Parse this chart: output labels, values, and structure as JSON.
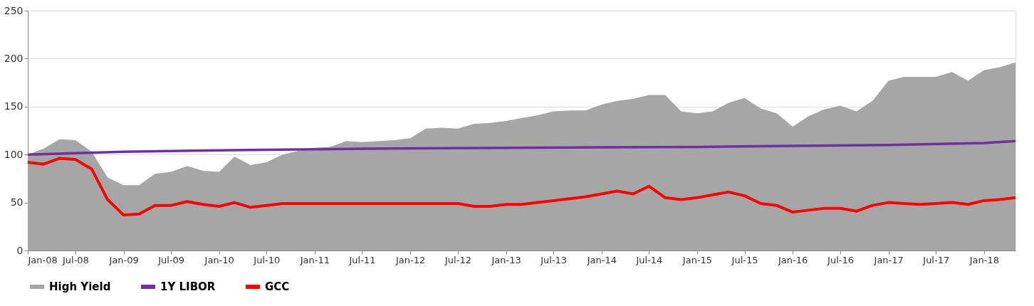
{
  "chart_data": {
    "type": "area",
    "x": [
      "2008-01",
      "2008-03",
      "2008-05",
      "2008-07",
      "2008-09",
      "2008-11",
      "2009-01",
      "2009-03",
      "2009-05",
      "2009-07",
      "2009-09",
      "2009-11",
      "2010-01",
      "2010-03",
      "2010-05",
      "2010-07",
      "2010-09",
      "2010-11",
      "2011-01",
      "2011-03",
      "2011-05",
      "2011-07",
      "2011-09",
      "2011-11",
      "2012-01",
      "2012-03",
      "2012-05",
      "2012-07",
      "2012-09",
      "2012-11",
      "2013-01",
      "2013-03",
      "2013-05",
      "2013-07",
      "2013-09",
      "2013-11",
      "2014-01",
      "2014-03",
      "2014-05",
      "2014-07",
      "2014-09",
      "2014-11",
      "2015-01",
      "2015-03",
      "2015-05",
      "2015-07",
      "2015-09",
      "2015-11",
      "2016-01",
      "2016-03",
      "2016-05",
      "2016-07",
      "2016-09",
      "2016-11",
      "2017-01",
      "2017-03",
      "2017-05",
      "2017-07",
      "2017-09",
      "2017-11",
      "2018-01",
      "2018-03",
      "2018-05"
    ],
    "series": [
      {
        "name": "High Yield",
        "color": "#a6a6a6",
        "values": [
          100,
          106,
          116,
          115,
          103,
          76,
          68,
          68,
          80,
          82,
          88,
          83,
          82,
          98,
          89,
          92,
          100,
          104,
          107,
          108,
          114,
          113,
          114,
          115,
          117,
          127,
          128,
          127,
          132,
          133,
          135,
          138,
          141,
          145,
          146,
          146,
          152,
          156,
          158,
          162,
          162,
          145,
          143,
          145,
          154,
          159,
          148,
          143,
          129,
          140,
          147,
          151,
          145,
          156,
          177,
          181,
          181,
          181,
          186,
          177,
          188,
          191,
          196
        ]
      },
      {
        "name": "1Y LIBOR",
        "type": "line",
        "color": "#7030a0",
        "x": [
          "2008-01",
          "2009-01",
          "2010-01",
          "2011-01",
          "2012-01",
          "2013-01",
          "2014-01",
          "2015-01",
          "2016-01",
          "2017-01",
          "2018-01",
          "2018-05"
        ],
        "values": [
          100,
          103,
          104.5,
          105.5,
          106.5,
          107,
          107.5,
          108,
          109,
          110,
          112,
          114
        ]
      },
      {
        "name": "GCC",
        "type": "line",
        "color": "#ff0000",
        "values": [
          92,
          90,
          96,
          95,
          85,
          53,
          37,
          38,
          47,
          47,
          51,
          48,
          46,
          50,
          45,
          47,
          49,
          49,
          49,
          49,
          49,
          49,
          49,
          49,
          49,
          49,
          49,
          49,
          46,
          46,
          48,
          48,
          50,
          52,
          54,
          56,
          59,
          62,
          59,
          67,
          55,
          53,
          55,
          58,
          61,
          57,
          49,
          47,
          40,
          42,
          44,
          44,
          41,
          47,
          50,
          49,
          48,
          49,
          50,
          48,
          52,
          53,
          55
        ]
      }
    ],
    "xlim": [
      "2008-01",
      "2018-05"
    ],
    "xticks": [
      {
        "value": "2008-01",
        "label": "Jan-08"
      },
      {
        "value": "2008-07",
        "label": "Jul-08"
      },
      {
        "value": "2009-01",
        "label": "Jan-09"
      },
      {
        "value": "2009-07",
        "label": "Jul-09"
      },
      {
        "value": "2010-01",
        "label": "Jan-10"
      },
      {
        "value": "2010-07",
        "label": "Jul-10"
      },
      {
        "value": "2011-01",
        "label": "Jan-11"
      },
      {
        "value": "2011-07",
        "label": "Jul-11"
      },
      {
        "value": "2012-01",
        "label": "Jan-12"
      },
      {
        "value": "2012-07",
        "label": "Jul-12"
      },
      {
        "value": "2013-01",
        "label": "Jan-13"
      },
      {
        "value": "2013-07",
        "label": "Jul-13"
      },
      {
        "value": "2014-01",
        "label": "Jan-14"
      },
      {
        "value": "2014-07",
        "label": "Jul-14"
      },
      {
        "value": "2015-01",
        "label": "Jan-15"
      },
      {
        "value": "2015-07",
        "label": "Jul-15"
      },
      {
        "value": "2016-01",
        "label": "Jan-16"
      },
      {
        "value": "2016-07",
        "label": "Jul-16"
      },
      {
        "value": "2017-01",
        "label": "Jan-17"
      },
      {
        "value": "2017-07",
        "label": "Jul-17"
      },
      {
        "value": "2018-01",
        "label": "Jan-18"
      }
    ],
    "ylim": [
      0,
      250
    ],
    "yticks": [
      0,
      50,
      100,
      150,
      200,
      250
    ],
    "grid": "y",
    "legend": "bottom"
  }
}
